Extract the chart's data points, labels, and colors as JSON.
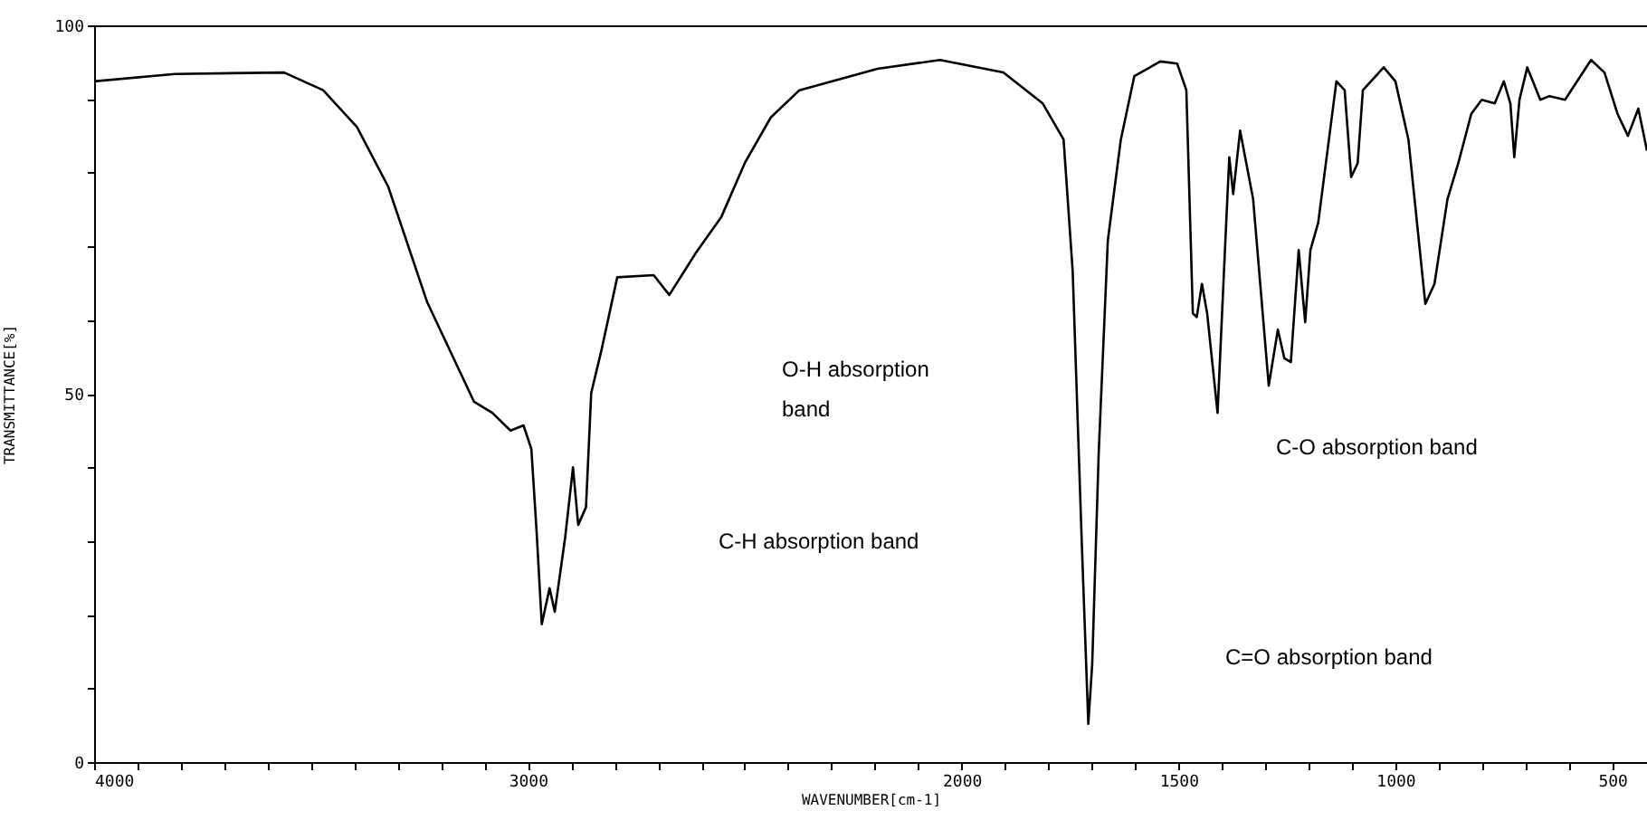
{
  "chart_data": {
    "type": "line",
    "xlabel": "WAVENUMBER[cm-1]",
    "ylabel": "TRANSMITTANCE[%]",
    "x": [
      4000,
      3814,
      3562,
      3472,
      3394,
      3322,
      3232,
      3124,
      3082,
      3040,
      3010,
      2992,
      2980,
      2968,
      2950,
      2938,
      2914,
      2896,
      2884,
      2866,
      2854,
      2830,
      2794,
      2710,
      2674,
      2614,
      2554,
      2500,
      2440,
      2374,
      2194,
      2050,
      1904,
      1813,
      1765,
      1744,
      1723,
      1708,
      1699,
      1684,
      1663,
      1633,
      1602,
      1542,
      1503,
      1482,
      1467,
      1458,
      1446,
      1434,
      1410,
      1392,
      1383,
      1374,
      1358,
      1328,
      1292,
      1271,
      1256,
      1241,
      1223,
      1208,
      1196,
      1178,
      1136,
      1117,
      1102,
      1087,
      1075,
      1027,
      1000,
      970,
      931,
      910,
      880,
      855,
      825,
      801,
      771,
      750,
      735,
      726,
      714,
      696,
      666,
      645,
      609,
      549,
      518,
      488,
      464,
      440,
      420
    ],
    "series": [
      {
        "color": "#000000",
        "values": [
          92.4,
          93.4,
          93.6,
          91.2,
          86.2,
          78.1,
          62.4,
          48.9,
          47.4,
          45.0,
          45.7,
          42.5,
          31.4,
          18.7,
          23.6,
          20.4,
          30.5,
          40.0,
          32.2,
          34.6,
          50.1,
          56.0,
          65.8,
          66.1,
          63.4,
          69.0,
          74.0,
          81.3,
          87.5,
          91.2,
          94.1,
          95.3,
          93.6,
          89.4,
          84.5,
          66.6,
          29.7,
          5.2,
          13.3,
          42.0,
          70.8,
          84.5,
          93.1,
          95.1,
          94.8,
          91.2,
          60.9,
          60.4,
          64.9,
          60.9,
          47.4,
          70.8,
          82.1,
          77.1,
          85.7,
          76.4,
          51.1,
          58.7,
          54.8,
          54.3,
          69.5,
          59.7,
          69.5,
          73.2,
          92.4,
          91.2,
          79.4,
          81.3,
          91.2,
          94.3,
          92.4,
          84.5,
          62.2,
          64.9,
          76.4,
          81.3,
          88.0,
          89.9,
          89.4,
          92.4,
          89.4,
          82.1,
          89.9,
          94.3,
          89.9,
          90.4,
          89.9,
          95.3,
          93.6,
          88.0,
          85.0,
          88.7,
          83.0
        ]
      }
    ],
    "xlim": [
      4000,
      420
    ],
    "xticks": [
      4000,
      {
        "value": 3900,
        "label": null
      },
      {
        "value": 3800,
        "label": null
      },
      {
        "value": 3700,
        "label": null
      },
      {
        "value": 3600,
        "label": null
      },
      {
        "value": 3500,
        "label": null
      },
      {
        "value": 3400,
        "label": null
      },
      {
        "value": 3300,
        "label": null
      },
      {
        "value": 3200,
        "label": null
      },
      {
        "value": 3100,
        "label": null
      },
      3000,
      {
        "value": 2900,
        "label": null
      },
      {
        "value": 2800,
        "label": null
      },
      {
        "value": 2700,
        "label": null
      },
      {
        "value": 2600,
        "label": null
      },
      {
        "value": 2500,
        "label": null
      },
      {
        "value": 2400,
        "label": null
      },
      {
        "value": 2300,
        "label": null
      },
      {
        "value": 2200,
        "label": null
      },
      {
        "value": 2100,
        "label": null
      },
      2000,
      {
        "value": 1900,
        "label": null
      },
      {
        "value": 1800,
        "label": null
      },
      {
        "value": 1700,
        "label": null
      },
      {
        "value": 1600,
        "label": null
      },
      1500,
      {
        "value": 1400,
        "label": null
      },
      {
        "value": 1300,
        "label": null
      },
      {
        "value": 1200,
        "label": null
      },
      {
        "value": 1100,
        "label": null
      },
      1000,
      {
        "value": 900,
        "label": null
      },
      {
        "value": 800,
        "label": null
      },
      {
        "value": 700,
        "label": null
      },
      {
        "value": 600,
        "label": null
      },
      500
    ],
    "ylim": [
      0,
      100
    ],
    "yticks": [
      0,
      {
        "value": 10,
        "label": null
      },
      {
        "value": 20,
        "label": null
      },
      {
        "value": 30,
        "label": null
      },
      {
        "value": 40,
        "label": null
      },
      50,
      {
        "value": 60,
        "label": null
      },
      {
        "value": 70,
        "label": null
      },
      {
        "value": 80,
        "label": null
      },
      {
        "value": 90,
        "label": null
      },
      100
    ],
    "grid": false,
    "marker": "none",
    "line_style": "solid",
    "annotations": [
      "O-H absorption\nband",
      "C-H absorption band",
      "C=O absorption band",
      "C-O absorption band"
    ]
  }
}
